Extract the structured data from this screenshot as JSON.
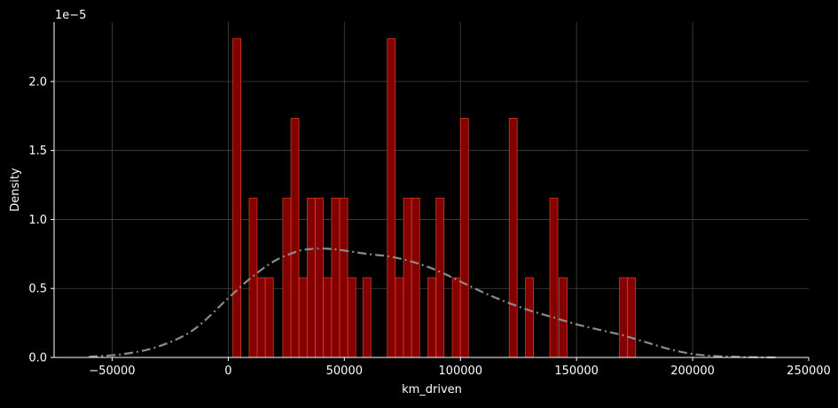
{
  "chart_data": {
    "type": "bar",
    "subtype": "histogram-with-kde",
    "xlabel": "km_driven",
    "ylabel": "Density",
    "y_offset_label": "1e−5",
    "xlim": [
      -75000,
      250000
    ],
    "ylim": [
      0,
      2.43
    ],
    "y_scale_factor": 1e-05,
    "xticks": [
      -50000,
      0,
      50000,
      100000,
      150000,
      200000,
      250000
    ],
    "xtick_labels": [
      "−50000",
      "0",
      "50000",
      "100000",
      "150000",
      "200000",
      "250000"
    ],
    "yticks": [
      0,
      0.5,
      1.0,
      1.5,
      2.0
    ],
    "ytick_labels": [
      "0.0",
      "0.5",
      "1.0",
      "1.5",
      "2.0"
    ],
    "grid": true,
    "bin_width": 3430,
    "bins": [
      {
        "x": 2000,
        "density": 2.31
      },
      {
        "x": 9000,
        "density": 1.155
      },
      {
        "x": 12500,
        "density": 0.578
      },
      {
        "x": 16000,
        "density": 0.578
      },
      {
        "x": 23500,
        "density": 1.155
      },
      {
        "x": 27000,
        "density": 1.733
      },
      {
        "x": 30500,
        "density": 0.578
      },
      {
        "x": 34000,
        "density": 1.155
      },
      {
        "x": 37500,
        "density": 1.155
      },
      {
        "x": 41000,
        "density": 0.578
      },
      {
        "x": 44500,
        "density": 1.155
      },
      {
        "x": 48000,
        "density": 1.155
      },
      {
        "x": 51500,
        "density": 0.578
      },
      {
        "x": 58000,
        "density": 0.578
      },
      {
        "x": 68500,
        "density": 2.31
      },
      {
        "x": 72000,
        "density": 0.578
      },
      {
        "x": 75500,
        "density": 1.155
      },
      {
        "x": 79000,
        "density": 1.155
      },
      {
        "x": 86000,
        "density": 0.578
      },
      {
        "x": 89500,
        "density": 1.155
      },
      {
        "x": 96500,
        "density": 0.578
      },
      {
        "x": 100000,
        "density": 1.733
      },
      {
        "x": 121000,
        "density": 1.733
      },
      {
        "x": 128000,
        "density": 0.578
      },
      {
        "x": 138500,
        "density": 1.155
      },
      {
        "x": 142500,
        "density": 0.578
      },
      {
        "x": 168500,
        "density": 0.578
      },
      {
        "x": 172000,
        "density": 0.578
      }
    ],
    "kde": {
      "x": [
        -60000,
        -45000,
        -30000,
        -15000,
        0,
        10000,
        20000,
        30000,
        35000,
        40000,
        45000,
        50000,
        60000,
        70000,
        80000,
        90000,
        100000,
        110000,
        120000,
        130000,
        140000,
        150000,
        160000,
        170000,
        180000,
        190000,
        200000,
        210000,
        220000,
        230000,
        237000
      ],
      "y": [
        0.005,
        0.025,
        0.08,
        0.2,
        0.43,
        0.58,
        0.7,
        0.77,
        0.785,
        0.79,
        0.785,
        0.775,
        0.75,
        0.73,
        0.69,
        0.63,
        0.55,
        0.47,
        0.4,
        0.34,
        0.29,
        0.24,
        0.2,
        0.16,
        0.11,
        0.06,
        0.025,
        0.01,
        0.004,
        0.001,
        0.0005
      ]
    },
    "colors": {
      "bar_fill": "#8b0000",
      "bar_edge": "#d43c1c",
      "kde_line": "#8c8c8c",
      "grid": "#444444",
      "axes": "#ffffff",
      "background": "#000000"
    }
  }
}
